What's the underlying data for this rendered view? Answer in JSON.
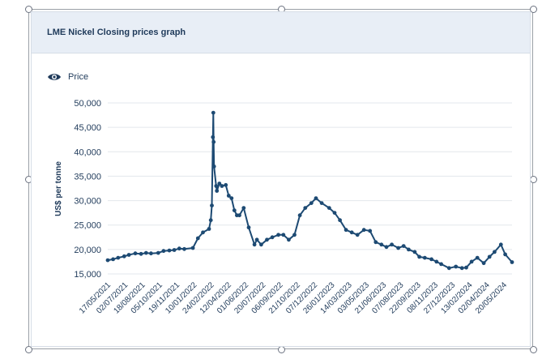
{
  "header": {
    "title": "LME Nickel Closing prices graph"
  },
  "legend": {
    "label": "Price",
    "icon": "eye-icon"
  },
  "colors": {
    "series": "#1d4a73",
    "header_bg": "#e8eef6",
    "title": "#1f3a5a",
    "grid": "#e3e7ec",
    "axis_text": "#1f3a5a"
  },
  "chart_data": {
    "type": "line",
    "title": "LME Nickel Closing prices graph",
    "ylabel": "US$ per tonne",
    "xlabel": "",
    "ylim": [
      15000,
      50000
    ],
    "yticks": [
      15000,
      20000,
      25000,
      30000,
      35000,
      40000,
      45000,
      50000
    ],
    "ytick_labels": [
      "15,000",
      "20,000",
      "25,000",
      "30,000",
      "35,000",
      "40,000",
      "45,000",
      "50,000"
    ],
    "xtick_labels": [
      "17/05/2021",
      "02/07/2021",
      "18/08/2021",
      "05/10/2021",
      "19/11/2021",
      "10/01/2022",
      "24/02/2022",
      "12/04/2022",
      "01/06/2022",
      "20/07/2022",
      "06/09/2022",
      "21/10/2022",
      "07/12/2022",
      "26/01/2023",
      "14/03/2023",
      "03/05/2023",
      "21/06/2023",
      "07/08/2023",
      "22/09/2023",
      "08/11/2023",
      "27/12/2023",
      "13/02/2024",
      "02/04/2024",
      "20/05/2024"
    ],
    "grid": true,
    "legend_position": "top-left",
    "series": [
      {
        "name": "Price",
        "x": [
          "2021-05-17",
          "2021-06-01",
          "2021-06-15",
          "2021-07-02",
          "2021-07-15",
          "2021-08-02",
          "2021-08-18",
          "2021-09-01",
          "2021-09-15",
          "2021-10-05",
          "2021-10-20",
          "2021-11-05",
          "2021-11-19",
          "2021-12-03",
          "2021-12-17",
          "2022-01-10",
          "2022-01-24",
          "2022-02-07",
          "2022-02-24",
          "2022-03-01",
          "2022-03-04",
          "2022-03-07",
          "2022-03-08",
          "2022-03-09",
          "2022-03-10",
          "2022-03-16",
          "2022-03-18",
          "2022-03-25",
          "2022-04-01",
          "2022-04-12",
          "2022-04-20",
          "2022-04-28",
          "2022-05-06",
          "2022-05-13",
          "2022-05-20",
          "2022-06-01",
          "2022-06-15",
          "2022-07-01",
          "2022-07-08",
          "2022-07-20",
          "2022-08-05",
          "2022-08-20",
          "2022-09-06",
          "2022-09-20",
          "2022-10-05",
          "2022-10-21",
          "2022-11-05",
          "2022-11-20",
          "2022-12-07",
          "2022-12-20",
          "2023-01-05",
          "2023-01-26",
          "2023-02-10",
          "2023-02-25",
          "2023-03-14",
          "2023-03-30",
          "2023-04-15",
          "2023-05-03",
          "2023-05-20",
          "2023-06-05",
          "2023-06-21",
          "2023-07-05",
          "2023-07-20",
          "2023-08-07",
          "2023-08-22",
          "2023-09-05",
          "2023-09-22",
          "2023-10-05",
          "2023-10-20",
          "2023-11-08",
          "2023-11-22",
          "2023-12-05",
          "2023-12-27",
          "2024-01-15",
          "2024-02-01",
          "2024-02-13",
          "2024-02-28",
          "2024-03-15",
          "2024-04-02",
          "2024-04-18",
          "2024-05-02",
          "2024-05-20",
          "2024-06-01",
          "2024-06-20"
        ],
        "y": [
          17800,
          18000,
          18300,
          18600,
          18900,
          19200,
          19100,
          19300,
          19200,
          19300,
          19700,
          19800,
          19900,
          20200,
          20100,
          20300,
          22300,
          23500,
          24200,
          26000,
          29000,
          43000,
          48000,
          42000,
          37000,
          33000,
          32000,
          33500,
          33000,
          33200,
          31000,
          30500,
          28000,
          27000,
          27000,
          28500,
          24500,
          21000,
          22000,
          21000,
          22000,
          22500,
          23000,
          23000,
          22000,
          23000,
          27000,
          28500,
          29500,
          30500,
          29500,
          28500,
          27500,
          26000,
          24000,
          23500,
          23000,
          24000,
          23800,
          21500,
          21000,
          20500,
          21000,
          20300,
          20700,
          20000,
          19500,
          18500,
          18300,
          18000,
          17500,
          17000,
          16200,
          16500,
          16200,
          16300,
          17500,
          18300,
          17200,
          18500,
          19500,
          21000,
          19000,
          17400
        ]
      }
    ]
  }
}
